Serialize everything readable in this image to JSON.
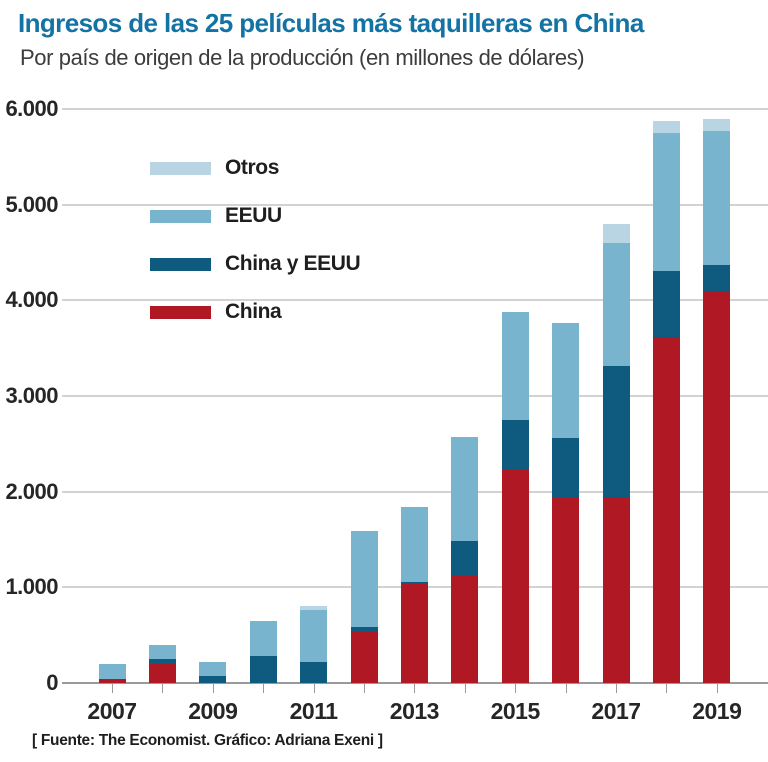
{
  "header": {
    "title": "Ingresos de las 25 películas más taquilleras en China",
    "subtitle": "Por país de origen de la producción (en millones de dólares)"
  },
  "footer": {
    "source": "[ Fuente: The Economist. Gráfico: Adriana Exeni ]"
  },
  "colors": {
    "title": "#1473a5",
    "china": "#b01823",
    "china_y_eeuu": "#0f5b80",
    "eeuu": "#79b4cf",
    "otros": "#b9d5e3",
    "gridline": "#d2d2d2",
    "baseline": "#9a9a9a",
    "text": "#262626"
  },
  "chart_data": {
    "type": "bar",
    "stacked": true,
    "title": "Ingresos de las 25 películas más taquilleras en China",
    "subtitle": "Por país de origen de la producción (en millones de dólares)",
    "xlabel": "",
    "ylabel": "millones de dólares",
    "ylim": [
      0,
      6000
    ],
    "grid": true,
    "legend_position": "top-left",
    "categories": [
      2007,
      2008,
      2009,
      2010,
      2011,
      2012,
      2013,
      2014,
      2015,
      2016,
      2017,
      2018,
      2019
    ],
    "x_tick_labels": [
      "2007",
      "2009",
      "2011",
      "2013",
      "2015",
      "2017",
      "2019"
    ],
    "x_label_every": 2,
    "series": [
      {
        "name": "China",
        "color": "#b01823",
        "values": [
          40,
          200,
          0,
          0,
          0,
          530,
          1030,
          1120,
          2230,
          1930,
          1940,
          3615,
          4090
        ]
      },
      {
        "name": "China y EEUU",
        "color": "#0f5b80",
        "values": [
          0,
          50,
          70,
          280,
          220,
          60,
          30,
          360,
          520,
          630,
          1370,
          690,
          280
        ]
      },
      {
        "name": "EEUU",
        "color": "#79b4cf",
        "values": [
          160,
          150,
          145,
          370,
          540,
          1000,
          785,
          1090,
          1130,
          1200,
          1290,
          1440,
          1400
        ]
      },
      {
        "name": "Otros",
        "color": "#b9d5e3",
        "values": [
          0,
          0,
          0,
          0,
          50,
          0,
          0,
          0,
          0,
          0,
          200,
          130,
          130
        ]
      }
    ],
    "totals": [
      200,
      400,
      215,
      650,
      810,
      1590,
      1845,
      2570,
      3880,
      3760,
      4800,
      5875,
      5900
    ],
    "legend": [
      "Otros",
      "EEUU",
      "China y EEUU",
      "China"
    ],
    "y_ticks": [
      {
        "value": 6000,
        "label": "6.000"
      },
      {
        "value": 5000,
        "label": "5.000"
      },
      {
        "value": 4000,
        "label": "4.000"
      },
      {
        "value": 3000,
        "label": "3.000"
      },
      {
        "value": 2000,
        "label": "2.000"
      },
      {
        "value": 1000,
        "label": "1.000"
      },
      {
        "value": 0,
        "label": "0"
      }
    ]
  }
}
